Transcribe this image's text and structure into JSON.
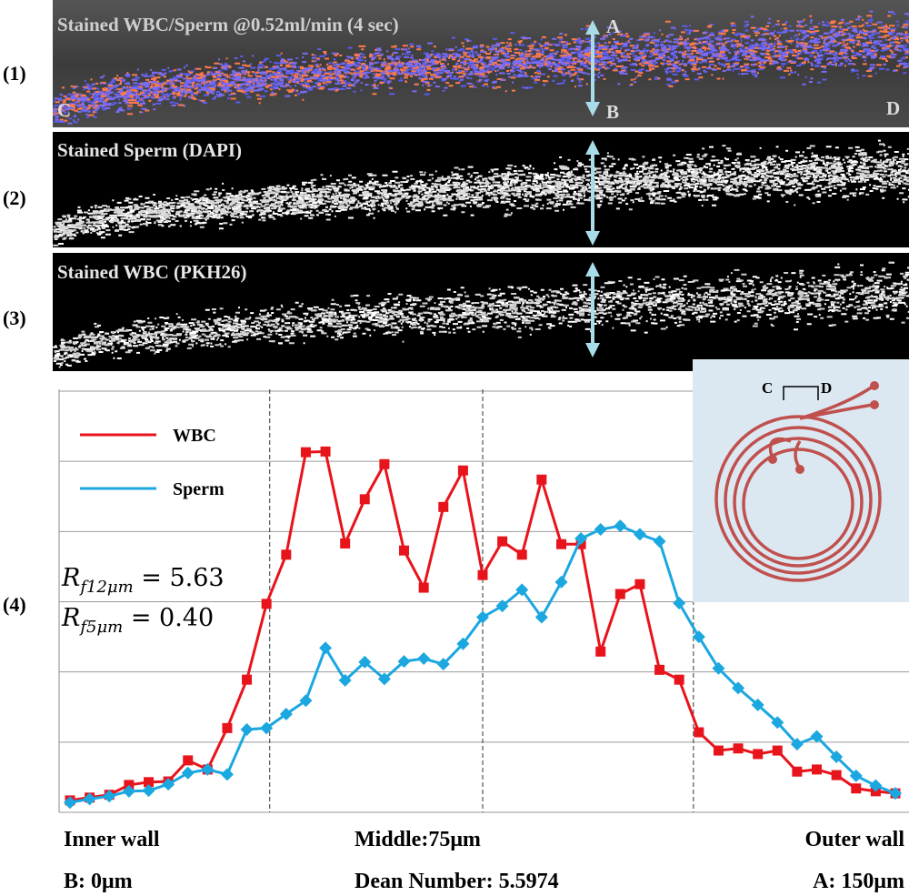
{
  "panels": [
    {
      "label": "(1)",
      "caption": "Stained WBC/Sperm @0.52ml/min (4 sec)"
    },
    {
      "label": "(2)",
      "caption": "Stained Sperm (DAPI)"
    },
    {
      "label": "(3)",
      "caption": "Stained WBC (PKH26)"
    }
  ],
  "point_labels": {
    "A": "A",
    "B": "B",
    "C": "C",
    "D": "D"
  },
  "inset_labels": [
    "C",
    "D"
  ],
  "bottom_labels": {
    "left": [
      "Inner wall",
      "B: 0μm"
    ],
    "middle": [
      "Middle:75μm",
      "Dean Number: 5.5974"
    ],
    "right": [
      "Outer wall",
      "A: 150μm"
    ]
  },
  "chart_data": {
    "type": "line",
    "panel_label": "(4)",
    "x": [
      0,
      3.57,
      7.14,
      10.71,
      14.29,
      17.86,
      21.43,
      25,
      28.57,
      32.14,
      35.71,
      39.29,
      42.86,
      46.43,
      50,
      53.57,
      57.14,
      60.71,
      64.29,
      67.86,
      71.43,
      75,
      78.57,
      82.14,
      85.71,
      89.29,
      92.86,
      96.43,
      100,
      103.57,
      107.14,
      110.71,
      114.29,
      117.86,
      121.43,
      125,
      128.57,
      132.14,
      135.71,
      139.29,
      142.86,
      146.43,
      150
    ],
    "series": [
      {
        "name": "WBC",
        "color": "#e8141c",
        "marker": "square",
        "values": [
          0.17,
          0.21,
          0.25,
          0.39,
          0.43,
          0.44,
          0.74,
          0.61,
          1.2,
          1.89,
          2.97,
          3.67,
          5.13,
          5.14,
          3.83,
          4.46,
          4.96,
          3.73,
          3.2,
          4.35,
          4.87,
          3.38,
          3.86,
          3.67,
          4.74,
          3.82,
          3.82,
          2.29,
          3.11,
          3.25,
          2.03,
          1.89,
          1.14,
          0.88,
          0.91,
          0.83,
          0.88,
          0.58,
          0.61,
          0.53,
          0.34,
          0.3,
          0.27
        ]
      },
      {
        "name": "Sperm",
        "color": "#1ba7e0",
        "marker": "diamond",
        "values": [
          0.14,
          0.19,
          0.23,
          0.3,
          0.31,
          0.4,
          0.56,
          0.61,
          0.54,
          1.18,
          1.2,
          1.4,
          1.59,
          2.34,
          1.88,
          2.14,
          1.9,
          2.15,
          2.19,
          2.11,
          2.4,
          2.78,
          2.94,
          3.17,
          2.78,
          3.28,
          3.9,
          4.03,
          4.08,
          3.96,
          3.86,
          2.98,
          2.5,
          2.05,
          1.77,
          1.53,
          1.28,
          0.97,
          1.08,
          0.79,
          0.52,
          0.38,
          0.27
        ]
      }
    ],
    "xlim": [
      0,
      150
    ],
    "ylim": [
      0,
      6
    ],
    "yticks": [
      0,
      1,
      2,
      3,
      4,
      5,
      6
    ],
    "grid": true,
    "reference_lines_x": [
      36.3,
      75,
      113.3
    ],
    "legend": "upper left",
    "annotations": [
      {
        "main": "R",
        "sub": "f12μm",
        "rest": " = 5.63"
      },
      {
        "main": "R",
        "sub": "f5μm",
        "rest": " = 0.40"
      }
    ]
  }
}
